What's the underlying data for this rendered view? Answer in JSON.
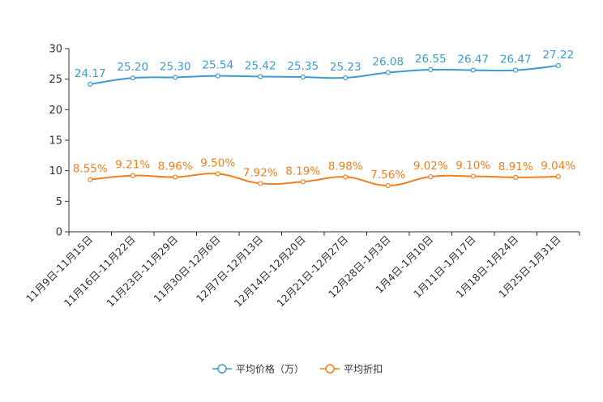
{
  "chart_data": {
    "type": "line",
    "title": "",
    "xlabel": "",
    "ylabel": "",
    "ylim": [
      0,
      30
    ],
    "yticks": [
      0,
      5,
      10,
      15,
      20,
      25,
      30
    ],
    "grid": false,
    "legend_position": "bottom-center",
    "categories": [
      "11月9日-11月15日",
      "11月16日-11月22日",
      "11月23日-11月29日",
      "11月30日-12月6日",
      "12月7日-12月13日",
      "12月14日-12月20日",
      "12月21日-12月27日",
      "12月28日-1月3日",
      "1月4日-1月10日",
      "1月11日-1月17日",
      "1月18日-1月24日",
      "1月25日-1月31日"
    ],
    "series": [
      {
        "name": "平均价格（万）",
        "color": "#3d9bd0",
        "values": [
          24.17,
          25.2,
          25.3,
          25.54,
          25.42,
          25.35,
          25.23,
          26.08,
          26.55,
          26.47,
          26.47,
          27.22
        ],
        "labels": [
          "24.17",
          "25.20",
          "25.30",
          "25.54",
          "25.42",
          "25.35",
          "25.23",
          "26.08",
          "26.55",
          "26.47",
          "26.47",
          "27.22"
        ]
      },
      {
        "name": "平均折扣",
        "color": "#f27f1e",
        "values": [
          8.55,
          9.21,
          8.96,
          9.5,
          7.92,
          8.19,
          8.98,
          7.56,
          9.02,
          9.1,
          8.91,
          9.04
        ],
        "labels": [
          "8.55%",
          "9.21%",
          "8.96%",
          "9.50%",
          "7.92%",
          "8.19%",
          "8.98%",
          "7.56%",
          "9.02%",
          "9.10%",
          "8.91%",
          "9.04%"
        ]
      }
    ]
  }
}
